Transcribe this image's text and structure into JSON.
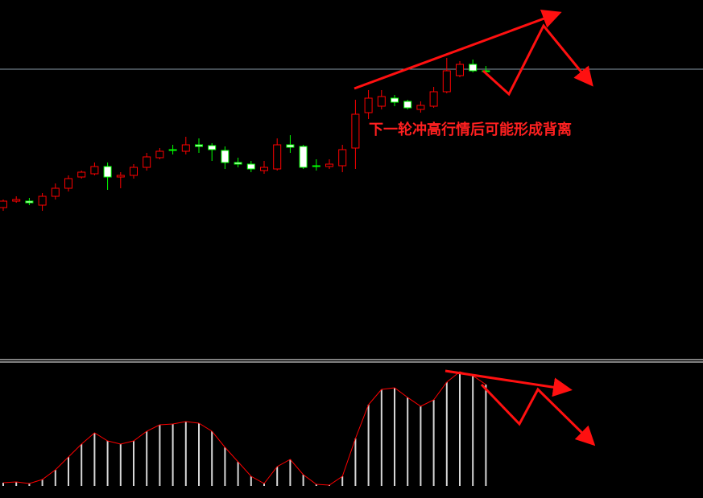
{
  "annotation": "下一轮冲高行情后可能形成背离",
  "chart_data": [
    {
      "type": "candlestick",
      "ylim": [
        0,
        447
      ],
      "hline": 361,
      "hline_color": "#8a9aa8",
      "up_color": "#ff0000",
      "down_color": "#00ff00",
      "down_body_color": "#ffffff",
      "open": [
        189,
        197,
        197,
        192,
        203,
        213,
        227,
        231,
        240,
        227,
        229,
        239,
        251,
        261,
        259,
        267,
        266,
        260,
        245,
        243,
        235,
        237,
        267,
        265,
        241,
        240,
        241,
        263,
        307,
        315,
        325,
        321,
        311,
        315,
        333,
        353,
        367,
        359
      ],
      "close": [
        197,
        199,
        195,
        203,
        213,
        225,
        233,
        240,
        227,
        229,
        239,
        252,
        259,
        260,
        267,
        265,
        261,
        245,
        243,
        237,
        239,
        267,
        264,
        239,
        240,
        243,
        261,
        305,
        325,
        327,
        320,
        313,
        316,
        333,
        359,
        367,
        359,
        359
      ],
      "high": [
        199,
        203,
        201,
        207,
        219,
        229,
        235,
        245,
        245,
        233,
        243,
        257,
        263,
        267,
        277,
        275,
        269,
        265,
        251,
        247,
        247,
        275,
        279,
        267,
        249,
        249,
        267,
        323,
        335,
        335,
        329,
        323,
        321,
        339,
        375,
        371,
        373,
        365
      ],
      "low": [
        185,
        195,
        192,
        185,
        199,
        209,
        225,
        229,
        211,
        213,
        225,
        235,
        249,
        255,
        255,
        257,
        247,
        237,
        239,
        233,
        231,
        235,
        257,
        237,
        235,
        237,
        233,
        237,
        299,
        311,
        315,
        311,
        307,
        313,
        331,
        351,
        357,
        355
      ]
    },
    {
      "type": "histogram-line",
      "ylim": [
        0,
        154
      ],
      "bar_color": "#d8d8d8",
      "line_color": "#ff0000",
      "values": [
        4,
        5,
        3,
        8,
        20,
        36,
        52,
        66,
        56,
        52,
        56,
        68,
        76,
        77,
        80,
        78,
        68,
        48,
        30,
        12,
        3,
        24,
        33,
        14,
        2,
        1,
        12,
        59,
        101,
        120,
        122,
        110,
        99,
        107,
        129,
        142,
        137,
        126
      ]
    }
  ]
}
